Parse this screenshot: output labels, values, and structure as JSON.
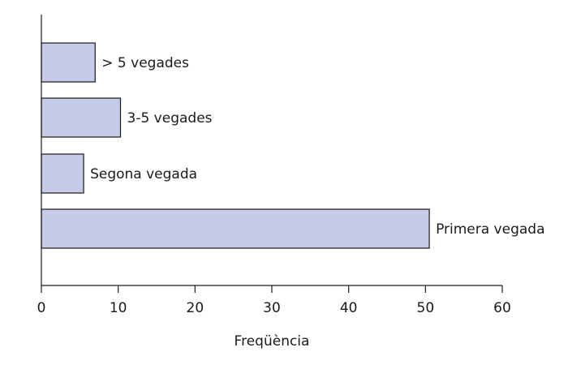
{
  "chart_data": {
    "type": "bar",
    "orientation": "horizontal",
    "categories": [
      "> 5 vegades",
      "3-5 vegades",
      "Segona vegada",
      "Primera vegada"
    ],
    "values": [
      7,
      10.3,
      5.5,
      50.5
    ],
    "xlabel": "Freqüència",
    "ylabel": "",
    "xlim": [
      0,
      60
    ],
    "xticks": [
      0,
      10,
      20,
      30,
      40,
      50,
      60
    ],
    "grid": false,
    "bar_color": "#c5cbe9",
    "edge_color": "#1a1a1a"
  }
}
